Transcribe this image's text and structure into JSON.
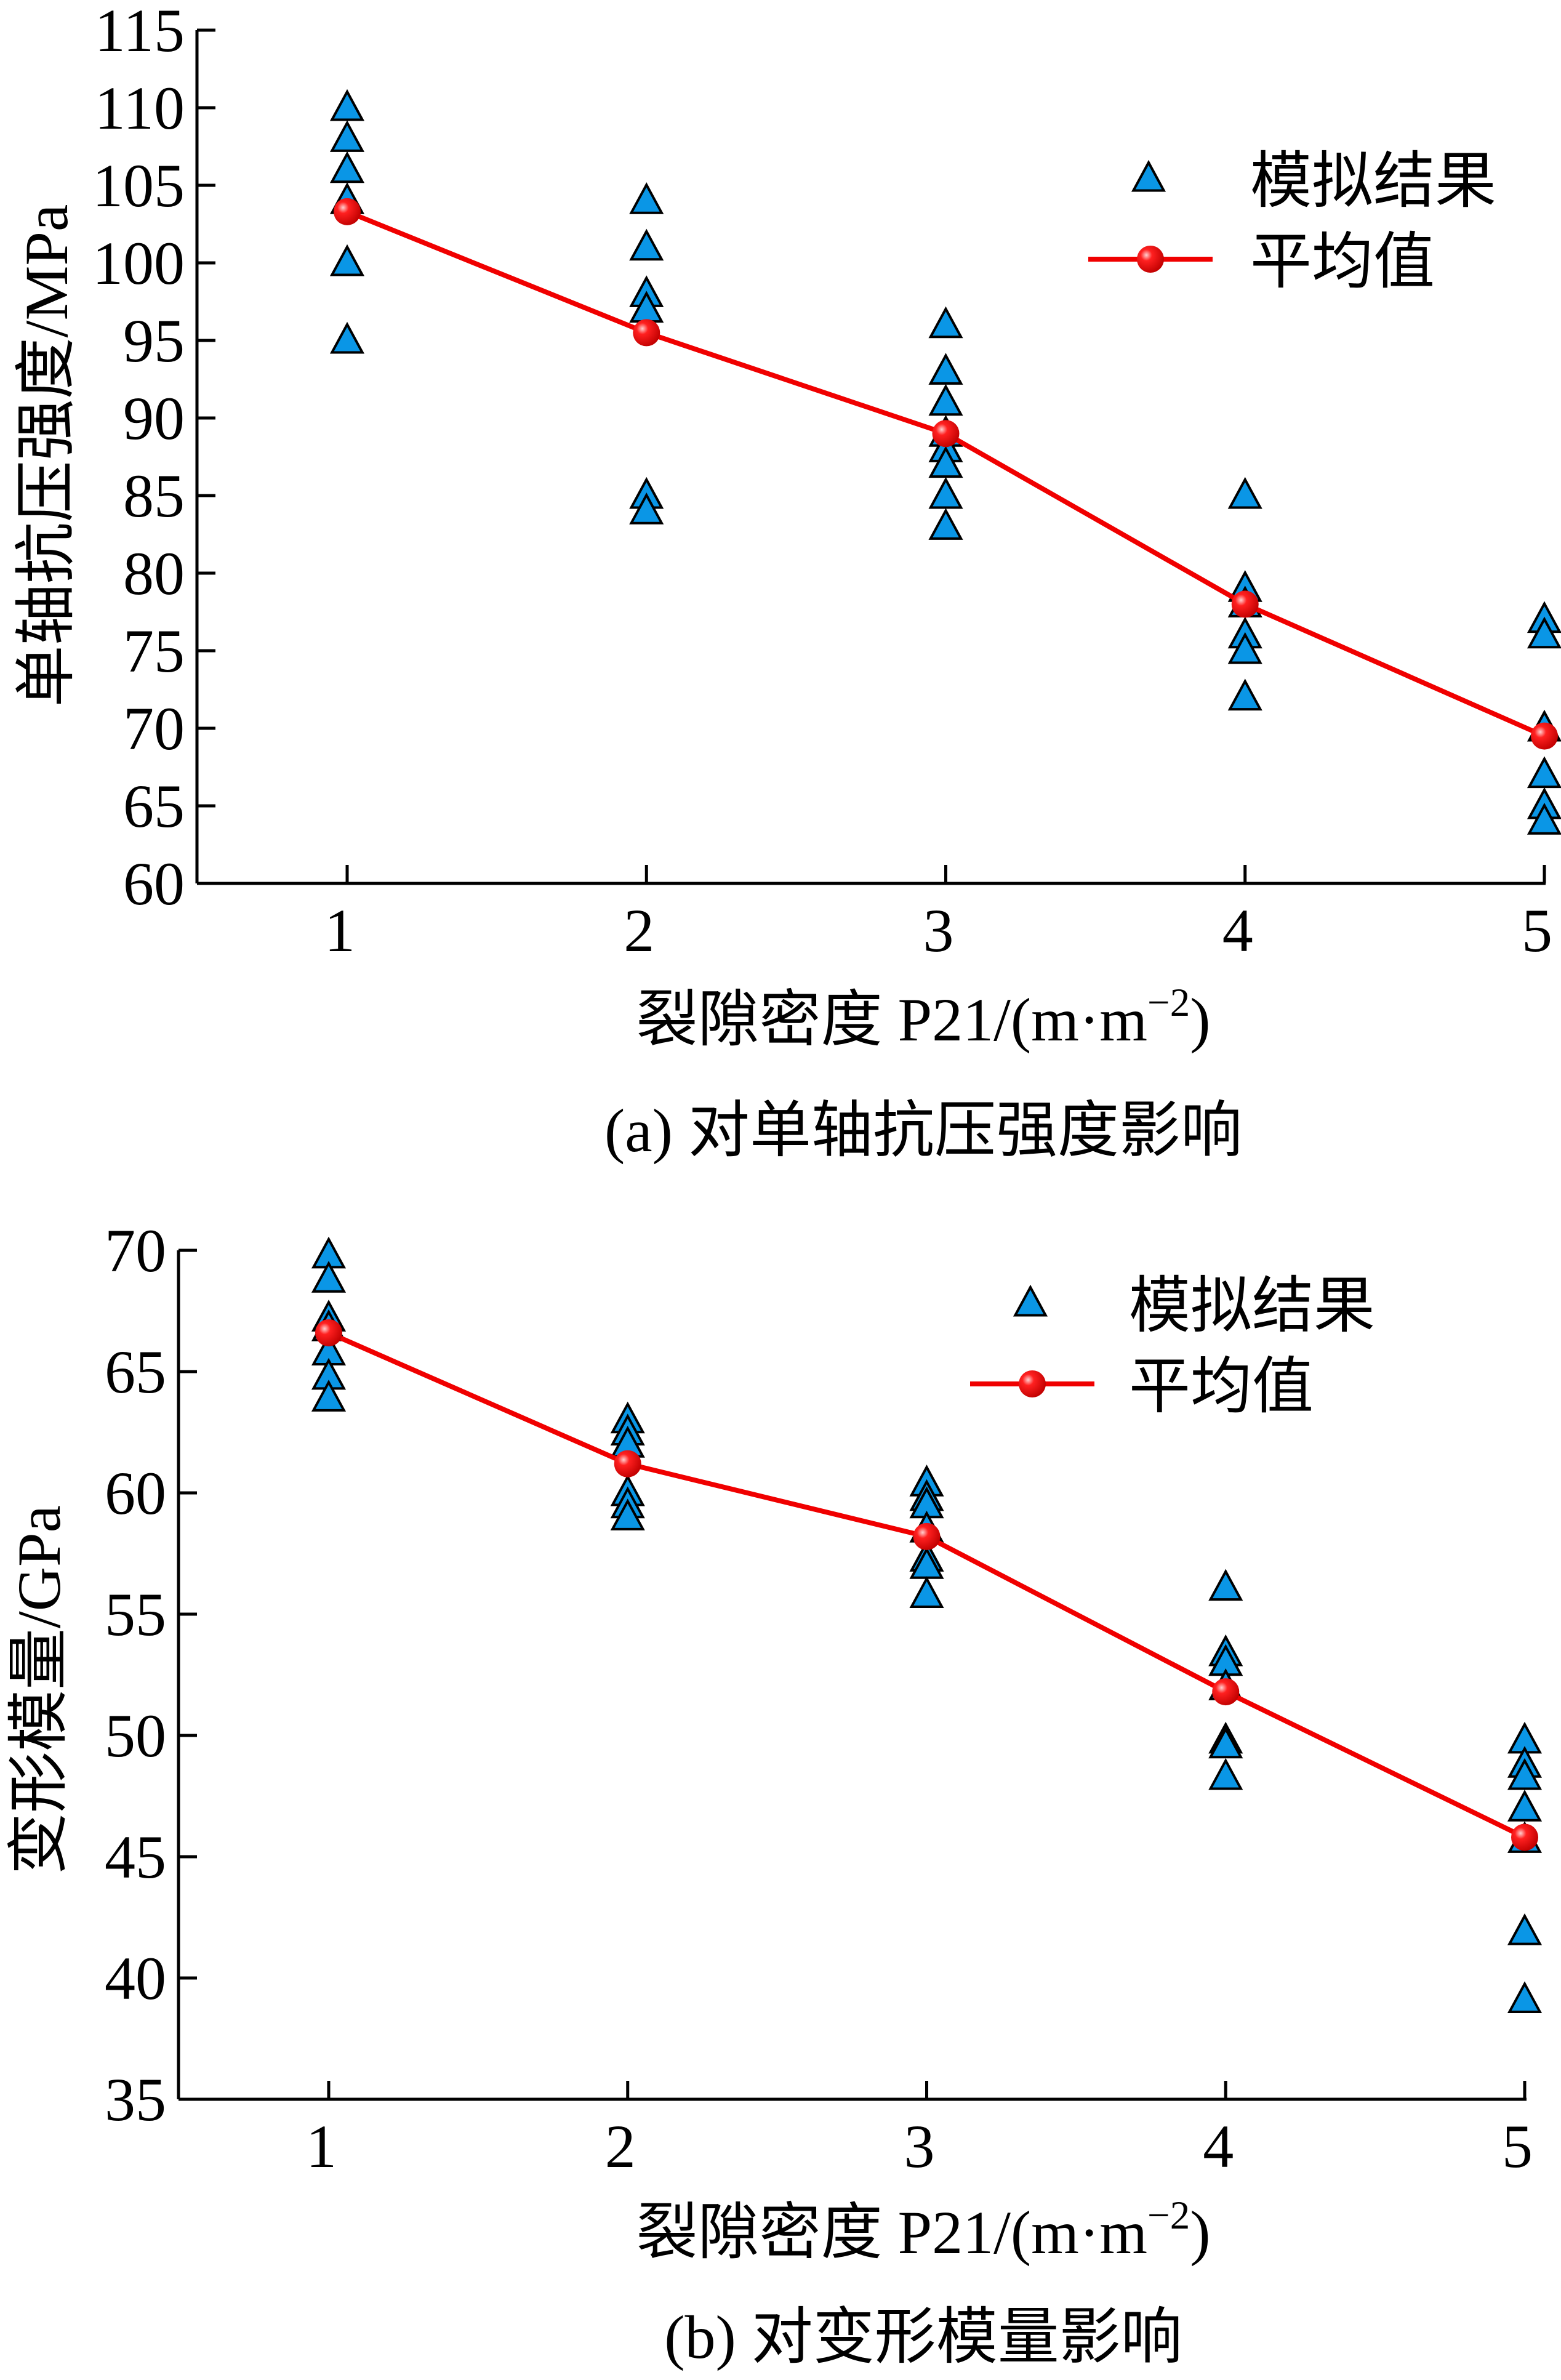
{
  "colors": {
    "triangle": "#0a96e6",
    "mean": "#f00000",
    "axis": "#000000"
  },
  "chart_data": [
    {
      "type": "scatter",
      "caption": "(a)  对单轴抗压强度影响",
      "xlabel_main": "裂隙密度 P21/(m·m",
      "xlabel_sup": "−2",
      "xlabel_end": ")",
      "ylabel": "单轴抗压强度/MPa",
      "xlim": [
        0.5,
        5
      ],
      "ylim": [
        60,
        115
      ],
      "xticks": [
        1,
        2,
        3,
        4,
        5
      ],
      "yticks": [
        60,
        65,
        70,
        75,
        80,
        85,
        90,
        95,
        100,
        105,
        110,
        115
      ],
      "legend": {
        "position": "top-right",
        "entries": [
          "模拟结果",
          "平均值"
        ]
      },
      "series": [
        {
          "name": "模拟结果",
          "kind": "scatter",
          "points": [
            [
              1,
              110
            ],
            [
              1,
              108
            ],
            [
              1,
              106
            ],
            [
              1,
              104
            ],
            [
              1,
              100
            ],
            [
              1,
              95
            ],
            [
              2,
              104
            ],
            [
              2,
              101
            ],
            [
              2,
              98
            ],
            [
              2,
              97
            ],
            [
              2,
              85
            ],
            [
              2,
              84
            ],
            [
              3,
              96
            ],
            [
              3,
              93
            ],
            [
              3,
              91
            ],
            [
              3,
              89
            ],
            [
              3,
              88
            ],
            [
              3,
              87
            ],
            [
              3,
              85
            ],
            [
              3,
              83
            ],
            [
              4,
              85
            ],
            [
              4,
              79
            ],
            [
              4,
              78
            ],
            [
              4,
              76
            ],
            [
              4,
              75
            ],
            [
              4,
              72
            ],
            [
              5,
              77
            ],
            [
              5,
              76
            ],
            [
              5,
              70
            ],
            [
              5,
              67
            ],
            [
              5,
              65
            ],
            [
              5,
              64
            ]
          ]
        },
        {
          "name": "平均值",
          "kind": "line",
          "points": [
            [
              1,
              103.3
            ],
            [
              2,
              95.5
            ],
            [
              3,
              89.0
            ],
            [
              4,
              78.0
            ],
            [
              5,
              69.5
            ]
          ]
        }
      ]
    },
    {
      "type": "scatter",
      "caption": "(b)  对变形模量影响",
      "xlabel_main": "裂隙密度 P21/(m·m",
      "xlabel_sup": "−2",
      "xlabel_end": ")",
      "ylabel": "变形模量/GPa",
      "xlim": [
        0.5,
        5
      ],
      "ylim": [
        35,
        70
      ],
      "xticks": [
        1,
        2,
        3,
        4,
        5
      ],
      "yticks": [
        35,
        40,
        45,
        50,
        55,
        60,
        65,
        70
      ],
      "legend": {
        "position": "top-right",
        "entries": [
          "模拟结果",
          "平均值"
        ]
      },
      "series": [
        {
          "name": "模拟结果",
          "kind": "scatter",
          "points": [
            [
              1,
              69.8
            ],
            [
              1,
              68.8
            ],
            [
              1,
              67.2
            ],
            [
              1,
              66.8
            ],
            [
              1,
              65.8
            ],
            [
              1,
              64.8
            ],
            [
              1,
              63.9
            ],
            [
              2,
              63.0
            ],
            [
              2,
              62.5
            ],
            [
              2,
              62.0
            ],
            [
              2,
              60.0
            ],
            [
              2,
              59.5
            ],
            [
              2,
              59.0
            ],
            [
              3,
              60.4
            ],
            [
              3,
              59.8
            ],
            [
              3,
              59.5
            ],
            [
              3,
              58.5
            ],
            [
              3,
              57.3
            ],
            [
              3,
              57.0
            ],
            [
              3,
              55.8
            ],
            [
              4,
              56.1
            ],
            [
              4,
              53.4
            ],
            [
              4,
              53.0
            ],
            [
              4,
              52.0
            ],
            [
              4,
              49.8
            ],
            [
              4,
              49.6
            ],
            [
              4,
              48.3
            ],
            [
              5,
              49.8
            ],
            [
              5,
              48.8
            ],
            [
              5,
              48.3
            ],
            [
              5,
              47.0
            ],
            [
              5,
              45.7
            ],
            [
              5,
              41.9
            ],
            [
              5,
              39.1
            ]
          ]
        },
        {
          "name": "平均值",
          "kind": "line",
          "points": [
            [
              1,
              66.6
            ],
            [
              2,
              61.2
            ],
            [
              3,
              58.2
            ],
            [
              4,
              51.8
            ],
            [
              5,
              45.8
            ]
          ]
        }
      ]
    }
  ]
}
